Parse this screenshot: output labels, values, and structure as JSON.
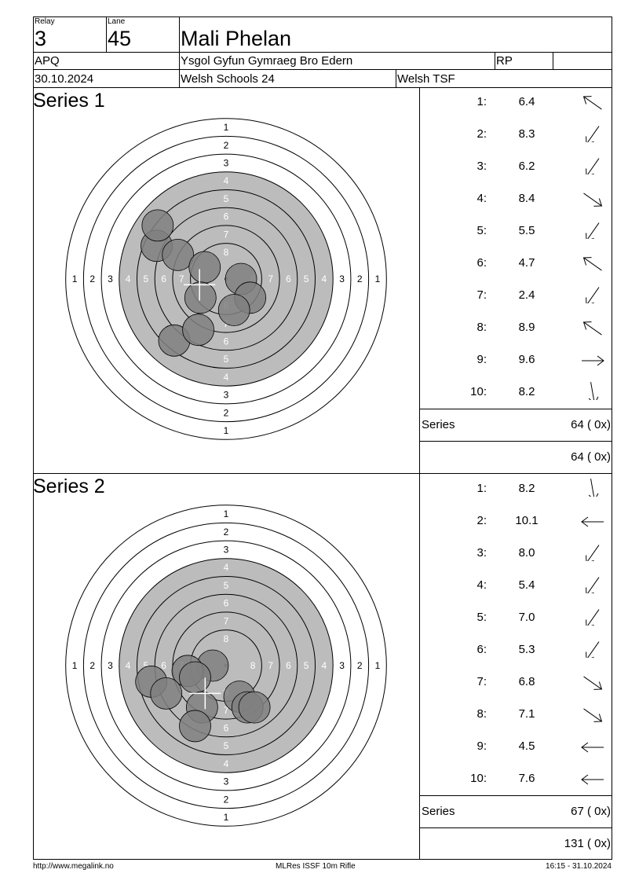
{
  "header": {
    "relay_label": "Relay",
    "relay_value": "3",
    "lane_label": "Lane",
    "lane_value": "45",
    "shooter_name": "Mali Phelan",
    "club_code": "APQ",
    "club_name": "Ysgol Gyfun Gymraeg Bro Edern",
    "class_code": "RP",
    "date": "30.10.2024",
    "competition": "Welsh Schools 24",
    "organizer": "Welsh TSF"
  },
  "ring_labels": [
    "1",
    "2",
    "3",
    "4",
    "5",
    "6",
    "7",
    "8"
  ],
  "series": [
    {
      "title": "Series 1",
      "shots": [
        {
          "num": "1:",
          "value": "6.4",
          "direction": "up-left"
        },
        {
          "num": "2:",
          "value": "8.3",
          "direction": "down-left"
        },
        {
          "num": "3:",
          "value": "6.2",
          "direction": "down-left"
        },
        {
          "num": "4:",
          "value": "8.4",
          "direction": "down-right"
        },
        {
          "num": "5:",
          "value": "5.5",
          "direction": "down-left"
        },
        {
          "num": "6:",
          "value": "4.7",
          "direction": "up-left"
        },
        {
          "num": "7:",
          "value": "2.4",
          "direction": "down-left"
        },
        {
          "num": "8:",
          "value": "8.9",
          "direction": "up-left"
        },
        {
          "num": "9:",
          "value": "9.6",
          "direction": "right"
        },
        {
          "num": "10:",
          "value": "8.2",
          "direction": "down"
        }
      ],
      "impacts": [
        [
          -1.3,
          -0.62
        ],
        [
          -0.9,
          -0.45
        ],
        [
          -0.4,
          -0.22
        ],
        [
          0.28,
          0.0
        ],
        [
          -0.97,
          1.15
        ],
        [
          -1.28,
          -1.0
        ],
        [
          -0.48,
          0.35
        ],
        [
          0.45,
          0.35
        ],
        [
          0.15,
          0.58
        ],
        [
          -0.52,
          0.95
        ]
      ],
      "series_label": "Series",
      "series_total": "64 ( 0x)",
      "running_total": "64 ( 0x)"
    },
    {
      "title": "Series 2",
      "shots": [
        {
          "num": "1:",
          "value": "8.2",
          "direction": "down"
        },
        {
          "num": "2:",
          "value": "10.1",
          "direction": "left"
        },
        {
          "num": "3:",
          "value": "8.0",
          "direction": "down-left"
        },
        {
          "num": "4:",
          "value": "5.4",
          "direction": "down-left"
        },
        {
          "num": "5:",
          "value": "7.0",
          "direction": "down-left"
        },
        {
          "num": "6:",
          "value": "5.3",
          "direction": "down-left"
        },
        {
          "num": "7:",
          "value": "6.8",
          "direction": "down-right"
        },
        {
          "num": "8:",
          "value": "7.1",
          "direction": "down-right"
        },
        {
          "num": "9:",
          "value": "4.5",
          "direction": "left"
        },
        {
          "num": "10:",
          "value": "7.6",
          "direction": "left"
        }
      ],
      "impacts": [
        [
          -0.25,
          0.0
        ],
        [
          -0.72,
          0.1
        ],
        [
          -0.58,
          0.22
        ],
        [
          -1.4,
          0.3
        ],
        [
          -1.12,
          0.52
        ],
        [
          -0.45,
          0.78
        ],
        [
          0.25,
          0.58
        ],
        [
          0.4,
          0.78
        ],
        [
          0.53,
          0.78
        ],
        [
          -0.58,
          1.13
        ]
      ],
      "series_label": "Series",
      "series_total": "67 ( 0x)",
      "running_total": "131 ( 0x)"
    }
  ],
  "footer": {
    "left": "http://www.megalink.no",
    "center": "MLRes ISSF 10m Rifle",
    "right": "16:15 - 31.10.2024"
  },
  "colors": {
    "black_ring_fill": "#bcbcbc",
    "impact_fill": "#808080",
    "line": "#000000"
  }
}
